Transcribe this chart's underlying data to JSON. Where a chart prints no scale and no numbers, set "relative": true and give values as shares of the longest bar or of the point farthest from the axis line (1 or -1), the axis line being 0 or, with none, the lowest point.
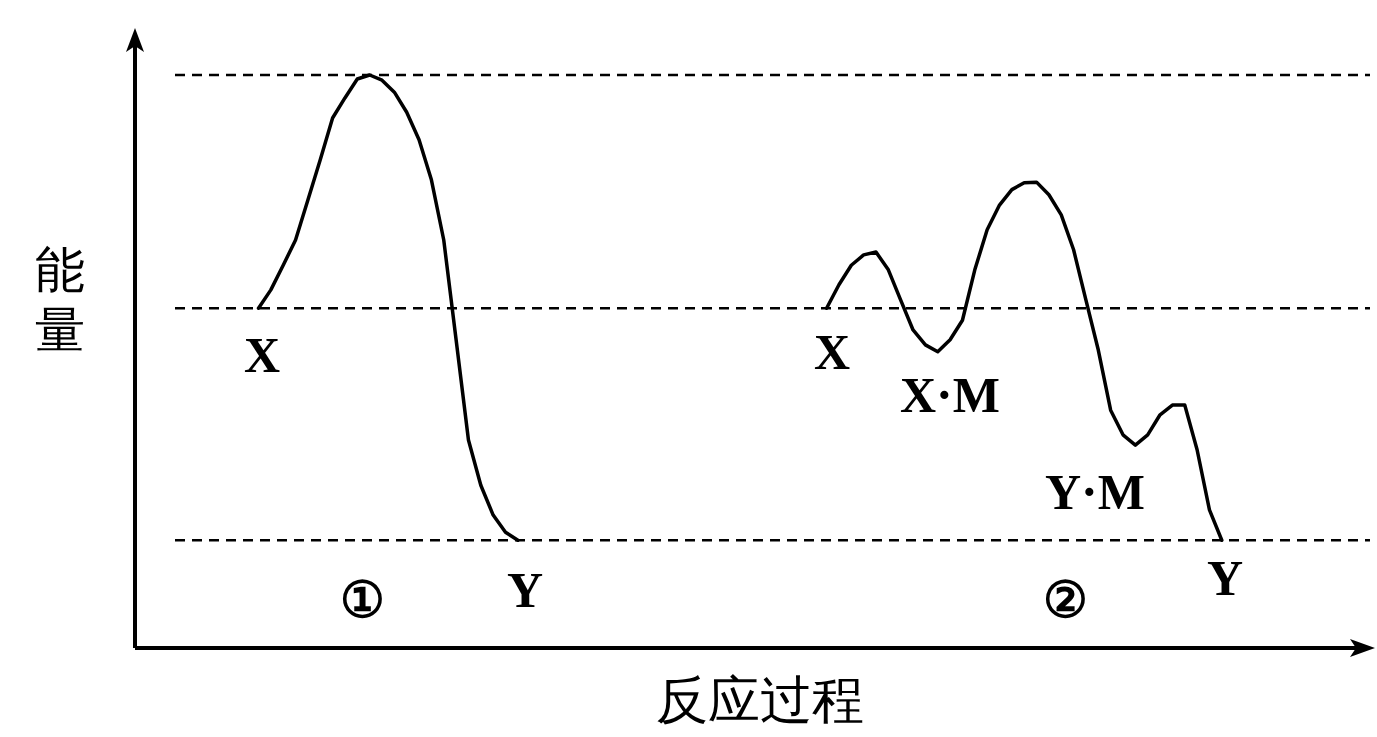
{
  "chart_data": {
    "type": "line",
    "relative": true,
    "ylabel": "能量",
    "xlabel": "反应过程",
    "marker": "none",
    "line_style": "solid",
    "categories": [
      null,
      null,
      null,
      null,
      null,
      null,
      null,
      null,
      null,
      null,
      null,
      null,
      null,
      null,
      null,
      null,
      null,
      null,
      null,
      null,
      null,
      null,
      null,
      null,
      null,
      null,
      null,
      null,
      null,
      null,
      null,
      null,
      null,
      null,
      null,
      null,
      null,
      null,
      null,
      null,
      null,
      null,
      null,
      null,
      null,
      null,
      null,
      null,
      null,
      null,
      null,
      null,
      null,
      null,
      null,
      null,
      null,
      null,
      null,
      null,
      null,
      null,
      null,
      null,
      null,
      null,
      null,
      null,
      null,
      null,
      null,
      null,
      null,
      null,
      null,
      null,
      null,
      null,
      null,
      null,
      null,
      null,
      null,
      null,
      null,
      null,
      null,
      null,
      null,
      null,
      null,
      null,
      null,
      null,
      null,
      null,
      null,
      null,
      null,
      null
    ],
    "series": [
      {
        "color": "#000000",
        "values": [
          null,
          null,
          null,
          null,
          null,
          null,
          null,
          null,
          null,
          null,
          0.593,
          0.625,
          0.668,
          0.712,
          0.782,
          0.852,
          0.925,
          0.96,
          0.993,
          1.0,
          0.991,
          0.97,
          0.935,
          0.887,
          0.817,
          0.712,
          0.538,
          0.363,
          0.284,
          0.232,
          0.202,
          0.188,
          null,
          null,
          null,
          null,
          null,
          null,
          null,
          null,
          null,
          null,
          null,
          null,
          null,
          null,
          null,
          null,
          null,
          null,
          null,
          null,
          null,
          null,
          null,
          null,
          null,
          null,
          null,
          null,
          null,
          null,
          null,
          null,
          null,
          null,
          null,
          null,
          null,
          null,
          null,
          null,
          null,
          null,
          null,
          null,
          null,
          null,
          null,
          null,
          null,
          null,
          null,
          null,
          null,
          null,
          null,
          null,
          null,
          null,
          null,
          null,
          null,
          null,
          null,
          null,
          null,
          null,
          null,
          null
        ]
      },
      {
        "color": "#000000",
        "values": [
          null,
          null,
          null,
          null,
          null,
          null,
          null,
          null,
          null,
          null,
          null,
          null,
          null,
          null,
          null,
          null,
          null,
          null,
          null,
          null,
          null,
          null,
          null,
          null,
          null,
          null,
          null,
          null,
          null,
          null,
          null,
          null,
          null,
          null,
          null,
          null,
          null,
          null,
          null,
          null,
          null,
          null,
          null,
          null,
          null,
          null,
          null,
          null,
          null,
          null,
          null,
          null,
          null,
          null,
          null,
          null,
          0.593,
          0.634,
          0.668,
          0.686,
          0.691,
          0.66,
          0.607,
          0.555,
          0.529,
          0.517,
          0.538,
          0.572,
          0.66,
          0.73,
          0.773,
          0.8,
          0.812,
          0.813,
          0.791,
          0.756,
          0.695,
          0.607,
          0.52,
          0.415,
          0.372,
          0.354,
          0.372,
          0.407,
          0.424,
          0.424,
          0.346,
          0.241,
          0.188,
          null,
          null,
          null,
          null,
          null,
          null,
          null,
          null,
          null,
          null,
          null
        ]
      }
    ],
    "ref_lines": [
      {
        "axis": "y",
        "value": 1.0,
        "line_style": "dashed"
      },
      {
        "axis": "y",
        "value": 0.593,
        "line_style": "dashed"
      },
      {
        "axis": "y",
        "value": 0.188,
        "line_style": "dashed"
      }
    ],
    "annotations": [
      "X",
      "①",
      "Y",
      "X",
      "X·M",
      "Y·M",
      "②",
      "Y"
    ]
  }
}
